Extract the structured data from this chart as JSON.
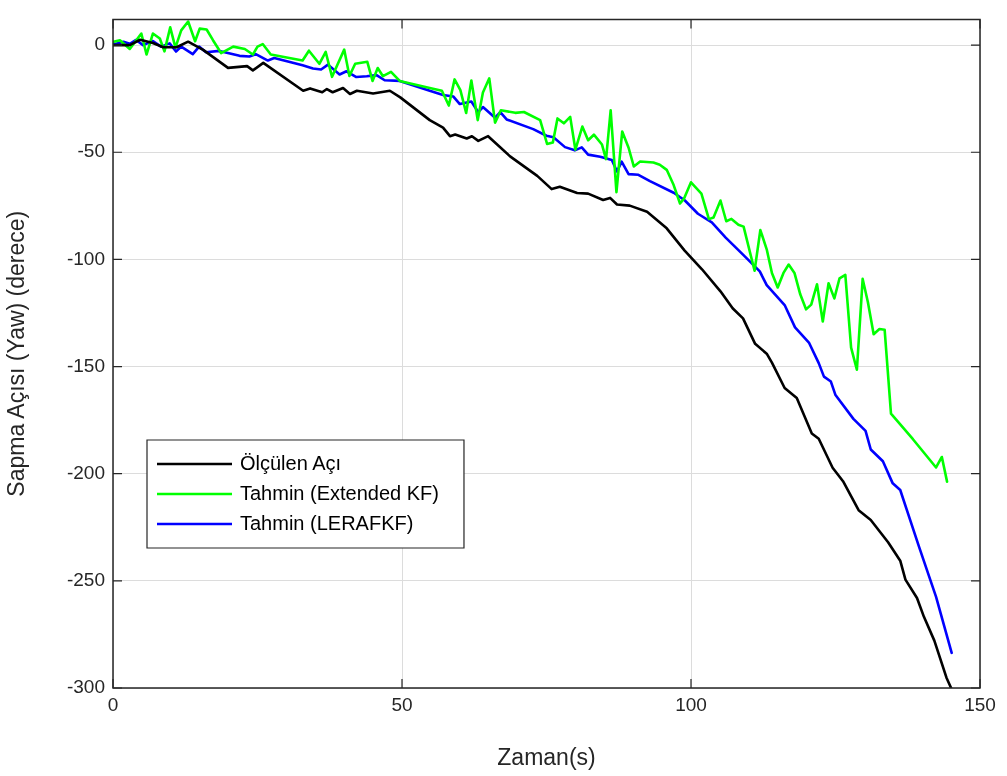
{
  "chart_data": {
    "type": "line",
    "xlabel": "Zaman(s)",
    "ylabel": "Sapma Açısı (Yaw) (derece)",
    "xlim": [
      0,
      150
    ],
    "ylim": [
      -300,
      12
    ],
    "xticks": [
      0,
      50,
      100,
      150
    ],
    "yticks": [
      -300,
      -250,
      -200,
      -150,
      -100,
      -50,
      0
    ],
    "grid": true,
    "legend": "bottom left",
    "marker": "none",
    "line_style": "solid",
    "series": [
      {
        "name": "Ölçülen Açı",
        "color": "#000000",
        "x": [
          0,
          2.9,
          4.7,
          6.9,
          8.7,
          11,
          13,
          15.6,
          19.9,
          23.2,
          24.2,
          26,
          32.9,
          34.1,
          36.2,
          37,
          38,
          39.8,
          41,
          42.2,
          45,
          47.9,
          49.7,
          54.8,
          57.1,
          58.3,
          59.2,
          61.2,
          62.1,
          63.2,
          64.9,
          68.7,
          73.4,
          75.9,
          77.3,
          80.3,
          82.2,
          84.8,
          86,
          87.2,
          89.4,
          92.4,
          95.8,
          98.9,
          101.9,
          105.1,
          107.2,
          109,
          111.1,
          113.1,
          114,
          116.2,
          118.3,
          120.9,
          122.1,
          124.5,
          126.3,
          129,
          131.1,
          134.1,
          136.2,
          137.1,
          139.1,
          140.3,
          142.1,
          144.2,
          145
        ],
        "values": [
          0,
          0,
          2.5,
          1,
          -1,
          -1,
          1.6,
          -2.2,
          -10.6,
          -9.8,
          -11.8,
          -8.3,
          -21.3,
          -20.2,
          -22,
          -20.5,
          -22,
          -20,
          -22.8,
          -21.3,
          -22.6,
          -21.3,
          -24.4,
          -35,
          -38.5,
          -42.5,
          -41.7,
          -43.6,
          -42.5,
          -44.7,
          -42.5,
          -51.9,
          -61,
          -67.2,
          -66.1,
          -69,
          -69.3,
          -72.3,
          -71.3,
          -74.4,
          -74.9,
          -77.8,
          -85.5,
          -95.9,
          -104.6,
          -114.9,
          -122.8,
          -127.5,
          -139.4,
          -144,
          -148.2,
          -160,
          -164.7,
          -181.2,
          -183.7,
          -197.2,
          -203.5,
          -217,
          -221.6,
          -232,
          -240.6,
          -249.4,
          -258,
          -266.8,
          -277.9,
          -295.2,
          -300
        ]
      },
      {
        "name": "Tahmin (Extended KF)",
        "color": "#00ff00",
        "x": [
          0,
          1.2,
          2.9,
          4.9,
          5.8,
          6.9,
          8.1,
          8.9,
          9.9,
          10.8,
          11.8,
          13,
          14.2,
          15,
          16.2,
          17.3,
          18.7,
          20.8,
          22.8,
          24.2,
          25,
          25.9,
          27.3,
          32.8,
          33.9,
          35.7,
          36.8,
          37.9,
          40,
          40.9,
          41.9,
          44,
          44.9,
          45.8,
          46.7,
          48.1,
          49.6,
          54.8,
          56.9,
          58.1,
          59.1,
          60.1,
          61.1,
          62,
          63.1,
          64,
          65.1,
          66.1,
          67.1,
          69.6,
          71.1,
          73.9,
          75.1,
          76.1,
          76.9,
          78,
          79.1,
          80,
          81.2,
          82.2,
          83.2,
          84.6,
          85.3,
          86.1,
          87.1,
          88.1,
          89.2,
          90.1,
          91.2,
          93.5,
          94.6,
          95.8,
          97,
          98.1,
          98.8,
          100,
          101.8,
          103.1,
          103.9,
          105.1,
          106.1,
          107,
          108.2,
          109.1,
          111,
          112,
          113.1,
          114,
          115,
          116,
          116.9,
          117.9,
          118.9,
          119.9,
          120.8,
          121.8,
          122.8,
          123.8,
          124.8,
          125.7,
          126.7,
          127.7,
          128.7,
          129.7,
          130.6,
          131.6,
          132.6,
          133.5,
          134.6,
          138.4,
          142.4,
          143.4,
          144.3
        ],
        "values": [
          1.5,
          2.3,
          -1.8,
          5.4,
          -4.4,
          5.4,
          3.1,
          -2.9,
          8.3,
          -1.2,
          6.9,
          11,
          1.8,
          7.7,
          7.3,
          2.3,
          -3.7,
          -0.7,
          -1.8,
          -4.4,
          -0.7,
          0.5,
          -4.4,
          -7.2,
          -2.6,
          -8.7,
          -3.2,
          -14.8,
          -2.1,
          -14.4,
          -8.7,
          -7.8,
          -16.7,
          -10.7,
          -14.5,
          -12.5,
          -16.7,
          -20,
          -21.3,
          -28.2,
          -16,
          -21,
          -31.7,
          -16.5,
          -35,
          -22.1,
          -15.5,
          -36.2,
          -30.4,
          -31.6,
          -31.2,
          -35,
          -46.1,
          -45.4,
          -34.2,
          -36.5,
          -33.5,
          -48.8,
          -38,
          -44.4,
          -41.8,
          -46.4,
          -53.2,
          -30.4,
          -68.6,
          -40.3,
          -47.9,
          -56.6,
          -54.3,
          -54.8,
          -55.8,
          -58.2,
          -65.3,
          -73.9,
          -71.6,
          -64,
          -69.3,
          -81.2,
          -80.4,
          -72.5,
          -82.2,
          -81.1,
          -83.8,
          -84.7,
          -105.3,
          -86.3,
          -95.3,
          -106.3,
          -113.1,
          -106.3,
          -102.4,
          -106.3,
          -116.3,
          -123.3,
          -121.1,
          -111.6,
          -129,
          -111.1,
          -118.2,
          -108.8,
          -107.2,
          -141.2,
          -151.5,
          -109.1,
          -119.9,
          -134.9,
          -132.5,
          -132.8,
          -172,
          -183.9,
          -197.1,
          -192.2,
          -203.7
        ]
      },
      {
        "name": "Tahmin (LERAFKF)",
        "color": "#0000ff",
        "x": [
          0,
          1.8,
          2.9,
          4,
          5.2,
          6.9,
          8.3,
          9.8,
          10.9,
          11.8,
          13.8,
          14.9,
          16.1,
          18.4,
          21.9,
          23.6,
          24.7,
          26.8,
          27.9,
          32.8,
          34.6,
          36,
          37.2,
          39.2,
          40.4,
          42.1,
          43.9,
          45.6,
          47,
          49.6,
          54.8,
          57.1,
          58.9,
          60,
          62,
          63.2,
          64,
          66.1,
          67,
          68.1,
          72.7,
          75,
          76.2,
          78.2,
          79.9,
          81.1,
          82.2,
          84.3,
          86.3,
          87.2,
          88,
          89.2,
          90.9,
          92.9,
          97,
          98.9,
          101.2,
          103.6,
          106,
          109,
          111.9,
          113.1,
          116.2,
          118,
          120.4,
          122.1,
          123,
          124.2,
          125,
          128.1,
          130.2,
          131.1,
          133.2,
          134.9,
          136.2,
          139.4,
          142.4,
          145.1
        ],
        "values": [
          0.2,
          1.6,
          0.6,
          2.4,
          0,
          1.9,
          -0.7,
          0.8,
          -3,
          -0.7,
          -4.2,
          -0.7,
          -3.3,
          -2.7,
          -5,
          -5.3,
          -4.2,
          -7.2,
          -6,
          -9.4,
          -10.9,
          -11.4,
          -9.1,
          -13.7,
          -12.2,
          -14.9,
          -14.5,
          -14,
          -16.4,
          -16.7,
          -21.3,
          -23.3,
          -24,
          -27.5,
          -26.3,
          -31.3,
          -28.9,
          -33.9,
          -31.3,
          -34.7,
          -39.2,
          -42.3,
          -43,
          -47.6,
          -49.1,
          -47.7,
          -51.1,
          -52.1,
          -53.6,
          -59,
          -54.4,
          -60.2,
          -60.5,
          -63.5,
          -68.9,
          -72.4,
          -78.7,
          -82.7,
          -89.8,
          -97.8,
          -105.6,
          -112,
          -121.3,
          -131.7,
          -138.8,
          -148.4,
          -154.7,
          -157,
          -163.3,
          -174.4,
          -180,
          -188.7,
          -194.2,
          -204.5,
          -207.6,
          -233.7,
          -257.5,
          -283.6
        ]
      }
    ]
  }
}
